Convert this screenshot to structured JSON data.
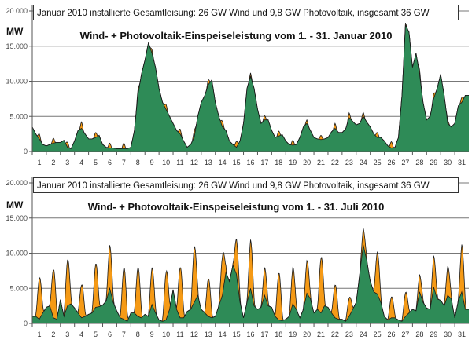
{
  "chart_data": [
    {
      "type": "area",
      "title": "Wind- + Photovoltaik-Einspeiseleistung vom 1. - 31. Januar 2010",
      "annotation": "Januar 2010 installierte Gesamtleisung: 26 GW Wind und 9,8 GW Photovoltaik, insgesamt 36 GW",
      "ylabel": "MW",
      "ylim": [
        0,
        20000
      ],
      "yticks": [
        "0",
        "5.000",
        "10.000",
        "15.000",
        "20.000"
      ],
      "ytick_values": [
        0,
        5000,
        10000,
        15000,
        20000
      ],
      "xticks": [
        "1",
        "2",
        "3",
        "4",
        "5",
        "6",
        "7",
        "8",
        "9",
        "10",
        "11",
        "12",
        "13",
        "14",
        "15",
        "16",
        "17",
        "18",
        "19",
        "20",
        "21",
        "22",
        "23",
        "24",
        "25",
        "26",
        "27",
        "28",
        "29",
        "30",
        "31"
      ],
      "grid": true,
      "colors": {
        "wind": "#2e8b57",
        "photovoltaik": "#f59a16",
        "line": "#1a1a1a"
      },
      "series": [
        {
          "key": "wind",
          "unit": "MW, 6-hourly samples (0h,6h,12h,18h) per day",
          "values": [
            3500,
            2500,
            1800,
            1000,
            800,
            1000,
            1200,
            1300,
            1300,
            1600,
            600,
            400,
            1500,
            3000,
            3300,
            2500,
            1800,
            1800,
            2000,
            2300,
            1000,
            600,
            500,
            500,
            400,
            400,
            400,
            400,
            600,
            3000,
            8000,
            11000,
            13000,
            15500,
            14000,
            12000,
            9000,
            7000,
            6000,
            5000,
            4000,
            3000,
            2500,
            1500,
            600,
            1000,
            2000,
            5000,
            7000,
            8000,
            9500,
            10200,
            7000,
            5000,
            3500,
            3000,
            1500,
            1000,
            600,
            1500,
            4000,
            9000,
            10700,
            9000,
            6000,
            4000,
            4500,
            4500,
            3000,
            2000,
            2200,
            2400,
            1500,
            1000,
            900,
            1000,
            2000,
            3500,
            4000,
            3000,
            2000,
            1800,
            1700,
            1800,
            2000,
            2800,
            3300,
            2700,
            2700,
            3200,
            4800,
            4300,
            3800,
            4000,
            5000,
            4200,
            3500,
            2500,
            2000,
            2000,
            1500,
            800,
            500,
            600,
            2000,
            8000,
            18000,
            17000,
            12000,
            14000,
            11000,
            7000,
            4500,
            5000,
            7500,
            9000,
            11000,
            8000,
            4000,
            3500,
            4000,
            6500,
            7000,
            8000
          ]
        },
        {
          "key": "photovoltaik",
          "unit": "MW, daily peak",
          "values": [
            700,
            700,
            700,
            900,
            700,
            700,
            800,
            700,
            500,
            700,
            700,
            800,
            700,
            800,
            800,
            500,
            600,
            700,
            700,
            500,
            600,
            700,
            700,
            600,
            700,
            900,
            300,
            700,
            700,
            400,
            700
          ]
        }
      ]
    },
    {
      "type": "area",
      "title": "Wind- + Photovoltaik-Einspeiseleistung vom 1. - 31. Juli 2010",
      "annotation": "Januar 2010 installierte Gesamtleisung: 26 GW Wind und 9,8 GW Photovoltaik, insgesamt 36 GW",
      "ylabel": "MW",
      "ylim": [
        0,
        20000
      ],
      "yticks": [
        "0",
        "5.000",
        "10.000",
        "15.000",
        "20.000"
      ],
      "ytick_values": [
        0,
        5000,
        10000,
        15000,
        20000
      ],
      "xticks": [
        "1",
        "2",
        "3",
        "4",
        "5",
        "6",
        "7",
        "8",
        "9",
        "10",
        "11",
        "12",
        "13",
        "14",
        "15",
        "16",
        "17",
        "18",
        "19",
        "20",
        "21",
        "22",
        "23",
        "24",
        "25",
        "26",
        "27",
        "28",
        "29",
        "30",
        "31"
      ],
      "grid": true,
      "colors": {
        "wind": "#2e8b57",
        "photovoltaik": "#f59a16",
        "line": "#1a1a1a"
      },
      "series": [
        {
          "key": "wind",
          "unit": "MW, 6-hourly samples (0h,6h,12h,18h) per day",
          "values": [
            1000,
            1000,
            600,
            1500,
            2300,
            2500,
            800,
            600,
            3400,
            1000,
            2500,
            2800,
            2200,
            1500,
            800,
            1000,
            1300,
            1500,
            2300,
            2400,
            2600,
            3200,
            5000,
            3000,
            1800,
            800,
            600,
            300,
            1500,
            1500,
            1000,
            800,
            1300,
            1000,
            2700,
            1500,
            500,
            300,
            500,
            2000,
            4800,
            2000,
            800,
            800,
            1700,
            2000,
            3000,
            4000,
            2000,
            1500,
            1000,
            800,
            1000,
            2500,
            4000,
            7300,
            6000,
            8300,
            7000,
            3000,
            800,
            3000,
            5000,
            2500,
            2000,
            2300,
            4000,
            2500,
            2300,
            1000,
            500,
            400,
            600,
            1000,
            2800,
            2000,
            800,
            2000,
            4300,
            3500,
            1500,
            2000,
            1500,
            2500,
            2300,
            1500,
            800,
            600,
            600,
            300,
            1000,
            2000,
            3000,
            7000,
            11200,
            9000,
            6000,
            4500,
            4200,
            3000,
            1000,
            500,
            800,
            800,
            500,
            300,
            1000,
            1500,
            2000,
            1800,
            4500,
            3000,
            2200,
            2000,
            5200,
            3500,
            3300,
            2500,
            4000,
            3500,
            800,
            3200,
            4500,
            2000
          ]
        },
        {
          "key": "photovoltaik",
          "unit": "MW, daily peak",
          "values": [
            5800,
            6900,
            6600,
            4700,
            6200,
            6200,
            7400,
            7000,
            5300,
            6800,
            7200,
            7800,
            5400,
            5500,
            5100,
            7000,
            4000,
            6700,
            5200,
            4700,
            7800,
            4700,
            2600,
            2400,
            6000,
            3000,
            3400,
            2500,
            4500,
            4100,
            6800
          ]
        }
      ]
    }
  ]
}
